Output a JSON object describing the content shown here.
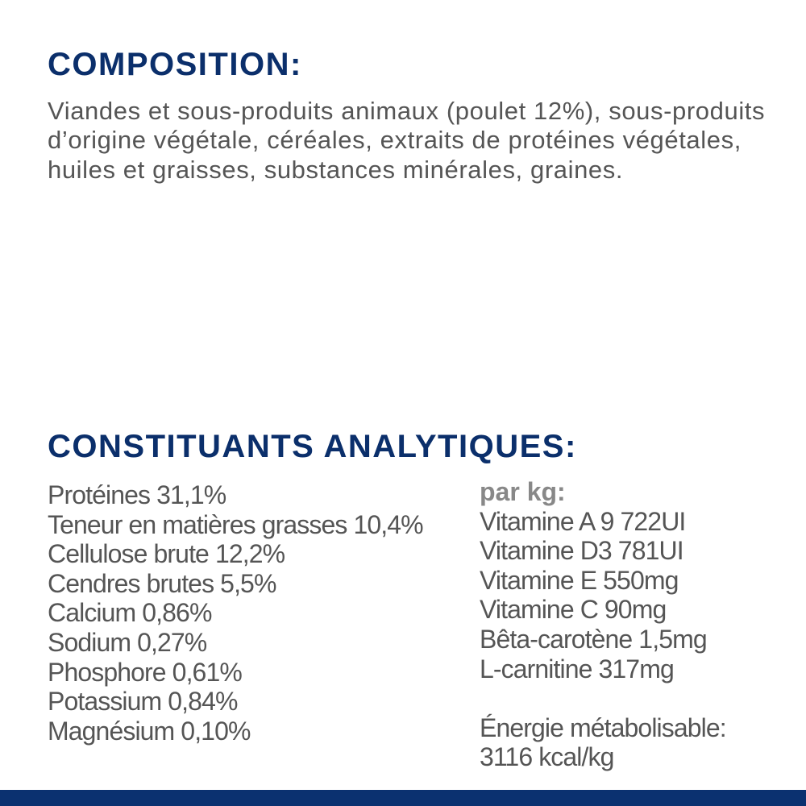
{
  "composition": {
    "heading": "COMPOSITION:",
    "text": "Viandes et sous-produits animaux (poulet 12%), sous-produits d’origine végétale, céréales, extraits de protéines végétales, huiles et graisses, substances minérales, graines."
  },
  "analytical": {
    "heading": "CONSTITUANTS ANALYTIQUES:",
    "constituents": [
      "Protéines 31,1%",
      "Teneur en matières grasses 10,4%",
      "Cellulose brute 12,2%",
      "Cendres brutes 5,5%",
      "Calcium 0,86%",
      "Sodium 0,27%",
      "Phosphore 0,61%",
      "Potassium 0,84%",
      "Magnésium 0,10%"
    ],
    "per_kg_label": "par kg:",
    "per_kg": [
      "Vitamine A 9 722UI",
      "Vitamine D3 781UI",
      "Vitamine E 550mg",
      "Vitamine C 90mg",
      "Bêta-carotène 1,5mg",
      "L-carnitine 317mg"
    ],
    "energy_label": "Énergie métabolisable:",
    "energy_value": "3116 kcal/kg"
  },
  "colors": {
    "heading": "#0b2f6b",
    "text": "#555555",
    "bar": "#0b3170"
  }
}
